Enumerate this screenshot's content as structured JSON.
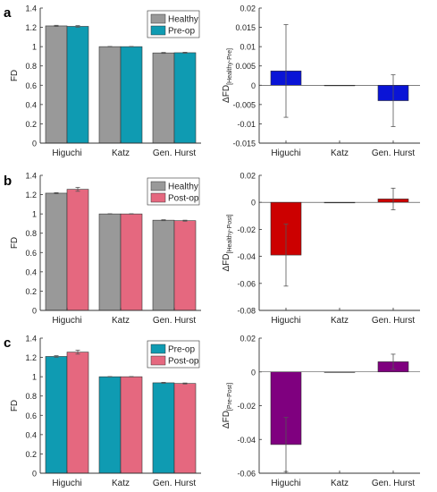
{
  "colors": {
    "healthy": "#999999",
    "preop": "#0f9bb2",
    "postop": "#e5687f",
    "diff_a": "#0a14d6",
    "diff_b": "#cc0000",
    "diff_c": "#7f007f"
  },
  "panel_labels": [
    "a",
    "b",
    "c"
  ],
  "chart_data": [
    {
      "id": "a-left",
      "type": "bar",
      "categories": [
        "Higuchi",
        "Katz",
        "Gen. Hurst"
      ],
      "series": [
        {
          "name": "Healthy",
          "color_key": "healthy",
          "values": [
            1.215,
            1.0,
            0.935
          ],
          "errors": [
            0.006,
            0.002,
            0.005
          ]
        },
        {
          "name": "Pre-op",
          "color_key": "preop",
          "values": [
            1.21,
            1.0,
            0.937
          ],
          "errors": [
            0.008,
            0.002,
            0.005
          ]
        }
      ],
      "ylabel": "FD",
      "ylim": [
        0,
        1.4
      ],
      "yticks": [
        "0",
        "0.2",
        "0.4",
        "0.6",
        "0.8",
        "1",
        "1.2",
        "1.4"
      ],
      "legend": "top-right"
    },
    {
      "id": "a-right",
      "type": "bar",
      "categories": [
        "Higuchi",
        "Katz",
        "Gen. Hurst"
      ],
      "series": [
        {
          "color_key": "diff_a",
          "values": [
            0.0037,
            0.0,
            -0.004
          ],
          "errors": [
            0.012,
            0.0,
            0.0067
          ]
        }
      ],
      "ylabel": "ΔFD",
      "ylabel_sub": "[Healthy-Pre]",
      "ylim": [
        -0.015,
        0.02
      ],
      "yticks": [
        "-0.015",
        "-0.01",
        "-0.005",
        "0",
        "0.005",
        "0.01",
        "0.015",
        "0.02"
      ]
    },
    {
      "id": "b-left",
      "type": "bar",
      "categories": [
        "Higuchi",
        "Katz",
        "Gen. Hurst"
      ],
      "series": [
        {
          "name": "Healthy",
          "color_key": "healthy",
          "values": [
            1.215,
            1.0,
            0.935
          ],
          "errors": [
            0.006,
            0.002,
            0.005
          ]
        },
        {
          "name": "Post-op",
          "color_key": "postop",
          "values": [
            1.255,
            1.0,
            0.93
          ],
          "errors": [
            0.02,
            0.002,
            0.005
          ]
        }
      ],
      "ylabel": "FD",
      "ylim": [
        0,
        1.4
      ],
      "yticks": [
        "0",
        "0.2",
        "0.4",
        "0.6",
        "0.8",
        "1",
        "1.2",
        "1.4"
      ],
      "legend": "top-right"
    },
    {
      "id": "b-right",
      "type": "bar",
      "categories": [
        "Higuchi",
        "Katz",
        "Gen. Hurst"
      ],
      "series": [
        {
          "color_key": "diff_b",
          "values": [
            -0.039,
            0.0,
            0.0025
          ],
          "errors": [
            0.023,
            0.0,
            0.008
          ]
        }
      ],
      "ylabel": "ΔFD",
      "ylabel_sub": "[Healthy-Post]",
      "ylim": [
        -0.08,
        0.02
      ],
      "yticks": [
        "-0.08",
        "-0.06",
        "-0.04",
        "-0.02",
        "0",
        "0.02"
      ]
    },
    {
      "id": "c-left",
      "type": "bar",
      "categories": [
        "Higuchi",
        "Katz",
        "Gen. Hurst"
      ],
      "series": [
        {
          "name": "Pre-op",
          "color_key": "preop",
          "values": [
            1.21,
            1.0,
            0.937
          ],
          "errors": [
            0.008,
            0.002,
            0.005
          ]
        },
        {
          "name": "Post-op",
          "color_key": "postop",
          "values": [
            1.255,
            1.0,
            0.93
          ],
          "errors": [
            0.02,
            0.002,
            0.005
          ]
        }
      ],
      "ylabel": "FD",
      "ylim": [
        0,
        1.4
      ],
      "yticks": [
        "0",
        "0.2",
        "0.4",
        "0.6",
        "0.8",
        "1",
        "1.2",
        "1.4"
      ],
      "legend": "top-right"
    },
    {
      "id": "c-right",
      "type": "bar",
      "categories": [
        "Higuchi",
        "Katz",
        "Gen. Hurst"
      ],
      "series": [
        {
          "color_key": "diff_c",
          "values": [
            -0.043,
            0.0,
            0.006
          ],
          "errors": [
            0.016,
            0.0,
            0.0045
          ]
        }
      ],
      "ylabel": "ΔFD",
      "ylabel_sub": "[Pre-Post]",
      "ylim": [
        -0.06,
        0.02
      ],
      "yticks": [
        "-0.06",
        "-0.04",
        "-0.02",
        "0",
        "0.02"
      ]
    }
  ]
}
